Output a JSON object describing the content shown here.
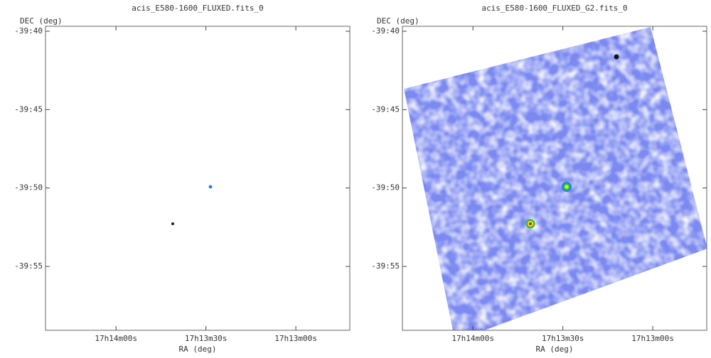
{
  "chart_data": [
    {
      "type": "image",
      "title": "acis_E580-1600_FLUXED.fits_0",
      "style": "sparse",
      "xlabel": "RA (deg)",
      "ylabel": "DEC (deg)",
      "xlim": [
        258.598,
        258.175
      ],
      "ylim": [
        -39.9846,
        -39.6614
      ],
      "xticks": [
        {
          "value": 258.5,
          "label": "17h14m00s"
        },
        {
          "value": 258.375,
          "label": "17h13m30s"
        },
        {
          "value": 258.25,
          "label": "17h13m00s"
        }
      ],
      "yticks": [
        {
          "value": -39.6667,
          "label": "-39:40"
        },
        {
          "value": -39.75,
          "label": "-39:45"
        },
        {
          "value": -39.8333,
          "label": "-39:50"
        },
        {
          "value": -39.9167,
          "label": "-39:55"
        }
      ]
    },
    {
      "type": "image",
      "title": "acis_E580-1600_FLUXED_G2.fits_0",
      "style": "smooth",
      "xlabel": "RA (deg)",
      "ylabel": "DEC (deg)",
      "xlim": [
        258.598,
        258.175
      ],
      "ylim": [
        -39.9846,
        -39.6614
      ],
      "xticks": [
        {
          "value": 258.5,
          "label": "17h14m00s"
        },
        {
          "value": 258.375,
          "label": "17h13m30s"
        },
        {
          "value": 258.25,
          "label": "17h13m00s"
        }
      ],
      "yticks": [
        {
          "value": -39.6667,
          "label": "-39:40"
        },
        {
          "value": -39.75,
          "label": "-39:45"
        },
        {
          "value": -39.8333,
          "label": "-39:50"
        },
        {
          "value": -39.9167,
          "label": "-39:55"
        }
      ]
    }
  ]
}
